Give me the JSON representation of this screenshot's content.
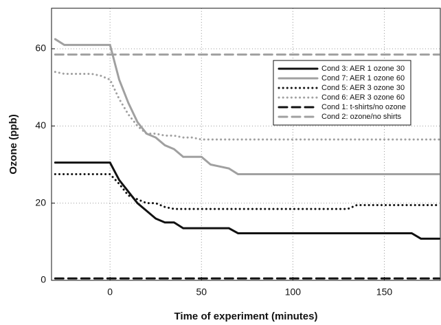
{
  "chart_data": {
    "type": "line",
    "xlabel": "Time of experiment (minutes)",
    "ylabel": "Ozone (ppb)",
    "xlim": [
      -32,
      181
    ],
    "ylim": [
      0,
      70.5
    ],
    "xticks": [
      0,
      50,
      100,
      150
    ],
    "yticks": [
      0,
      20,
      40,
      60
    ],
    "grid": true,
    "legend": "upper right",
    "x": [
      -30,
      -25,
      -20,
      -15,
      -10,
      -5,
      0,
      5,
      10,
      15,
      20,
      25,
      30,
      35,
      40,
      45,
      50,
      55,
      60,
      65,
      70,
      75,
      80,
      85,
      90,
      95,
      100,
      105,
      110,
      115,
      120,
      125,
      130,
      135,
      140,
      145,
      150,
      155,
      160,
      165,
      170,
      175,
      180
    ],
    "series": [
      {
        "name": "Cond 3: AER 1 ozone 30",
        "color": "#111111",
        "dash": "solid",
        "values": [
          30.5,
          30.5,
          30.5,
          30.5,
          30.5,
          30.5,
          30.5,
          26,
          23,
          20,
          18,
          16,
          15,
          15,
          13.5,
          13.5,
          13.5,
          13.5,
          13.5,
          13.5,
          12.2,
          12.2,
          12.2,
          12.2,
          12.2,
          12.2,
          12.2,
          12.2,
          12.2,
          12.2,
          12.2,
          12.2,
          12.2,
          12.2,
          12.2,
          12.2,
          12.2,
          12.2,
          12.2,
          12.2,
          10.8,
          10.8,
          10.8
        ]
      },
      {
        "name": "Cond 7: AER 1 ozone 60",
        "color": "#a0a0a0",
        "dash": "solid",
        "values": [
          62.5,
          61,
          61,
          61,
          61,
          61,
          61,
          52,
          46,
          41,
          38,
          37,
          35,
          34,
          32,
          32,
          32,
          30,
          29.5,
          29,
          27.5,
          27.5,
          27.5,
          27.5,
          27.5,
          27.5,
          27.5,
          27.5,
          27.5,
          27.5,
          27.5,
          27.5,
          27.5,
          27.5,
          27.5,
          27.5,
          27.5,
          27.5,
          27.5,
          27.5,
          27.5,
          27.5,
          27.5
        ]
      },
      {
        "name": "Cond 5: AER 3 ozone 30",
        "color": "#111111",
        "dash": "dot",
        "values": [
          27.5,
          27.5,
          27.5,
          27.5,
          27.5,
          27.5,
          27.5,
          25,
          22,
          21,
          20,
          20,
          19,
          18.5,
          18.5,
          18.5,
          18.5,
          18.5,
          18.5,
          18.5,
          18.5,
          18.5,
          18.5,
          18.5,
          18.5,
          18.5,
          18.5,
          18.5,
          18.5,
          18.5,
          18.5,
          18.5,
          18.5,
          19.5,
          19.5,
          19.5,
          19.5,
          19.5,
          19.5,
          19.5,
          19.5,
          19.5,
          19.5
        ]
      },
      {
        "name": "Cond 6: AER 3 ozone 60",
        "color": "#a0a0a0",
        "dash": "dot",
        "values": [
          54,
          53.5,
          53.5,
          53.5,
          53.5,
          53,
          52,
          47,
          43,
          40,
          38,
          38,
          37.5,
          37.5,
          37,
          37,
          36.5,
          36.5,
          36.5,
          36.5,
          36.5,
          36.5,
          36.5,
          36.5,
          36.5,
          36.5,
          36.5,
          36.5,
          36.5,
          36.5,
          36.5,
          36.5,
          36.5,
          36.5,
          36.5,
          36.5,
          36.5,
          36.5,
          36.5,
          36.5,
          36.5,
          36.5,
          36.5
        ]
      },
      {
        "name": "Cond 1: t-shirts/no ozone",
        "color": "#111111",
        "dash": "dash",
        "values": [
          0.5,
          0.5,
          0.5,
          0.5,
          0.5,
          0.5,
          0.5,
          0.5,
          0.5,
          0.5,
          0.5,
          0.5,
          0.5,
          0.5,
          0.5,
          0.5,
          0.5,
          0.5,
          0.5,
          0.5,
          0.5,
          0.5,
          0.5,
          0.5,
          0.5,
          0.5,
          0.5,
          0.5,
          0.5,
          0.5,
          0.5,
          0.5,
          0.5,
          0.5,
          0.5,
          0.5,
          0.5,
          0.5,
          0.5,
          0.5,
          0.5,
          0.5,
          0.5
        ]
      },
      {
        "name": "Cond 2: ozone/no shirts",
        "color": "#a0a0a0",
        "dash": "dash",
        "values": [
          58.5,
          58.5,
          58.5,
          58.5,
          58.5,
          58.5,
          58.5,
          58.5,
          58.5,
          58.5,
          58.5,
          58.5,
          58.5,
          58.5,
          58.5,
          58.5,
          58.5,
          58.5,
          58.5,
          58.5,
          58.5,
          58.5,
          58.5,
          58.5,
          58.5,
          58.5,
          58.5,
          58.5,
          58.5,
          58.5,
          58.5,
          58.5,
          58.5,
          58.5,
          58.5,
          58.5,
          58.5,
          58.5,
          58.5,
          58.5,
          58.5,
          58.5,
          58.5
        ]
      }
    ]
  }
}
